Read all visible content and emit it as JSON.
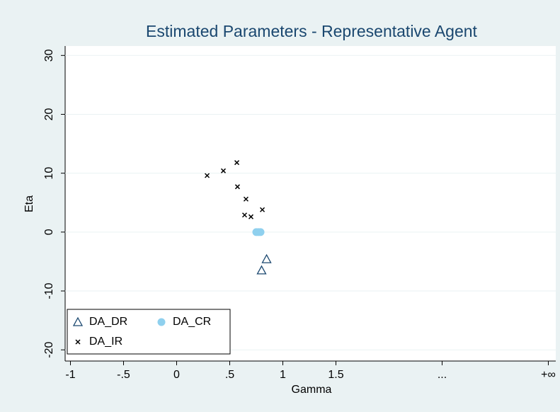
{
  "chart_data": {
    "type": "scatter",
    "title": "Estimated Parameters - Representative Agent",
    "x_label": "Gamma",
    "y_label": "Eta",
    "xlim": [
      -1.05,
      3.57
    ],
    "xticks": [
      -1,
      {
        "value": -0.5,
        "label": "-.5"
      },
      0,
      {
        "value": 0.5,
        "label": ".5"
      },
      1,
      1.5,
      {
        "value": 2.5,
        "label": "..."
      },
      {
        "value": 3.5,
        "label": "+∞"
      }
    ],
    "ylim": [
      -21.9,
      31.6
    ],
    "yticks": [
      -20,
      -10,
      0,
      10,
      20,
      30
    ],
    "grid": true,
    "legend": "lower left",
    "series": [
      {
        "name": "DA_DR",
        "color": "#1a476f",
        "marker": "triangle",
        "x": [
          0.847,
          0.8
        ],
        "values": [
          -4.6,
          -6.5
        ]
      },
      {
        "name": "DA_CR",
        "color": "#8fd0ee",
        "marker": "circle",
        "x": [
          0.75,
          0.77,
          0.79
        ],
        "values": [
          0,
          0,
          0
        ]
      },
      {
        "name": "DA_IR",
        "color": "#000000",
        "marker": "x",
        "x": [
          0.287,
          0.44,
          0.567,
          0.573,
          0.653,
          0.64,
          0.7,
          0.807
        ],
        "values": [
          9.6,
          10.4,
          11.8,
          7.7,
          5.6,
          2.9,
          2.6,
          3.8
        ]
      }
    ]
  }
}
